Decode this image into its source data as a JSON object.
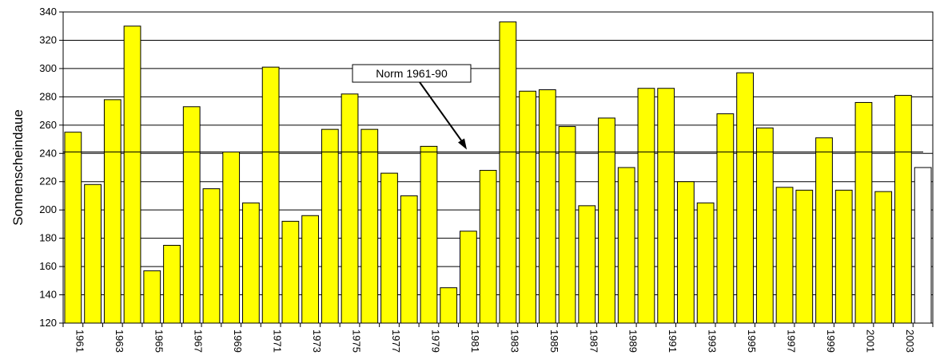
{
  "chart_data": {
    "type": "bar",
    "title": "",
    "xlabel": "",
    "ylabel": "Sonnenscheindaue",
    "ylim": [
      120,
      340
    ],
    "yticks": [
      120,
      140,
      160,
      180,
      200,
      220,
      240,
      260,
      280,
      300,
      320,
      340
    ],
    "grid": true,
    "categories": [
      "1961",
      "1962",
      "1963",
      "1964",
      "1965",
      "1966",
      "1967",
      "1968",
      "1969",
      "1970",
      "1971",
      "1972",
      "1973",
      "1974",
      "1975",
      "1976",
      "1977",
      "1978",
      "1979",
      "1980",
      "1981",
      "1982",
      "1983",
      "1984",
      "1985",
      "1986",
      "1987",
      "1988",
      "1989",
      "1990",
      "1991",
      "1992",
      "1993",
      "1994",
      "1995",
      "1996",
      "1997",
      "1998",
      "1999",
      "2000",
      "2001",
      "2002",
      "2003",
      "2004"
    ],
    "x_tick_labels": [
      "1961",
      "1963",
      "1965",
      "1967",
      "1969",
      "1971",
      "1973",
      "1975",
      "1977",
      "1979",
      "1981",
      "1983",
      "1985",
      "1987",
      "1989",
      "1991",
      "1993",
      "1995",
      "1997",
      "1999",
      "2001",
      "2003"
    ],
    "values": [
      255,
      218,
      278,
      330,
      157,
      175,
      273,
      215,
      241,
      205,
      301,
      192,
      196,
      257,
      282,
      257,
      226,
      210,
      245,
      145,
      185,
      228,
      333,
      284,
      285,
      259,
      203,
      265,
      230,
      286,
      286,
      220,
      205,
      268,
      297,
      258,
      216,
      214,
      251,
      214,
      276,
      213,
      281,
      230
    ],
    "bar_colors": {
      "default": "#ffff00",
      "last": "#ffffff",
      "outline": "#000000"
    },
    "reference_line": {
      "value": 241,
      "label": "Norm 1961-90"
    }
  }
}
